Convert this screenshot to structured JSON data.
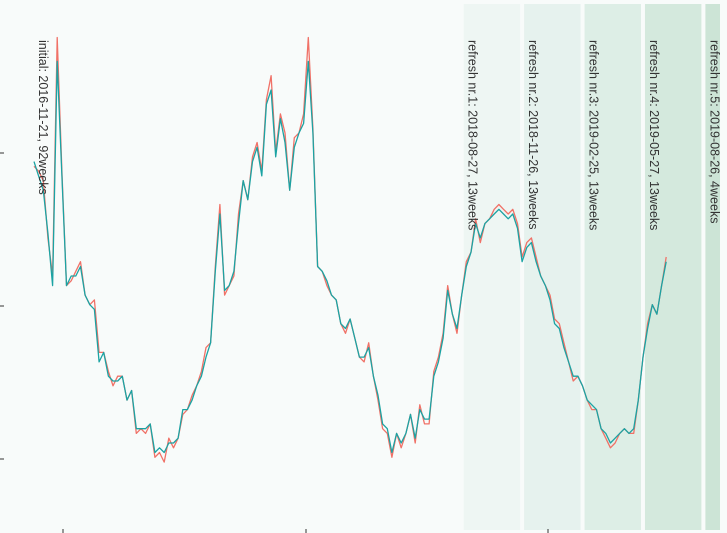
{
  "chart_data": {
    "type": "line",
    "title": "",
    "xlabel": "",
    "ylabel": "",
    "colors": {
      "series_a": "#F07167",
      "series_b": "#1BA3A3",
      "panel_background": "#F8FBFA",
      "band_fills": [
        "#EEF6F3",
        "#E6F2EE",
        "#DDEEE6",
        "#D4E9DD",
        "#CCE4D6"
      ]
    },
    "segments": [
      {
        "label": "initial: 2016-11-21, 92weeks"
      },
      {
        "label": "refresh nr.1: 2018-08-27, 13weeks"
      },
      {
        "label": "refresh nr.2: 2018-11-26, 13weeks"
      },
      {
        "label": "refresh nr.3: 2019-02-25, 13weeks"
      },
      {
        "label": "refresh nr.4: 2019-05-27, 13weeks"
      },
      {
        "label": "refresh nr.5: 2019-08-26, 4weeks"
      }
    ],
    "week_boundaries": [
      0,
      92,
      105,
      118,
      131,
      144,
      148
    ],
    "ylim": [
      0,
      1
    ],
    "series": [
      {
        "values": [
          0.71,
          0.7,
          0.68,
          0.56,
          0.48,
          0.98,
          0.7,
          0.46,
          0.47,
          0.49,
          0.51,
          0.44,
          0.42,
          0.43,
          0.32,
          0.32,
          0.28,
          0.25,
          0.27,
          0.27,
          0.22,
          0.24,
          0.15,
          0.16,
          0.15,
          0.17,
          0.1,
          0.11,
          0.09,
          0.14,
          0.12,
          0.14,
          0.19,
          0.2,
          0.23,
          0.25,
          0.28,
          0.33,
          0.34,
          0.5,
          0.63,
          0.44,
          0.46,
          0.48,
          0.61,
          0.68,
          0.64,
          0.73,
          0.76,
          0.7,
          0.85,
          0.9,
          0.74,
          0.82,
          0.78,
          0.66,
          0.77,
          0.78,
          0.82,
          0.98,
          0.79,
          0.5,
          0.49,
          0.46,
          0.44,
          0.43,
          0.38,
          0.36,
          0.39,
          0.35,
          0.31,
          0.3,
          0.34,
          0.27,
          0.22,
          0.16,
          0.15,
          0.1,
          0.15,
          0.12,
          0.15,
          0.19,
          0.13,
          0.21,
          0.17,
          0.17,
          0.28,
          0.31,
          0.36,
          0.46,
          0.4,
          0.36,
          0.44,
          0.51,
          0.53,
          0.6,
          0.55,
          0.59,
          0.6,
          0.62,
          0.63,
          0.62,
          0.61,
          0.62,
          0.59,
          0.52,
          0.55,
          0.56,
          0.52,
          0.48,
          0.46,
          0.44,
          0.39,
          0.38,
          0.34,
          0.3,
          0.26,
          0.27,
          0.25,
          0.22,
          0.2,
          0.2,
          0.16,
          0.14,
          0.12,
          0.13,
          0.15,
          0.16,
          0.15,
          0.15,
          0.22,
          0.31,
          0.38,
          0.42,
          0.4,
          0.46,
          0.52
        ]
      },
      {
        "values": [
          0.72,
          0.69,
          0.66,
          0.57,
          0.46,
          0.93,
          0.69,
          0.46,
          0.48,
          0.48,
          0.5,
          0.44,
          0.42,
          0.41,
          0.3,
          0.32,
          0.27,
          0.26,
          0.26,
          0.27,
          0.22,
          0.24,
          0.16,
          0.16,
          0.16,
          0.17,
          0.11,
          0.12,
          0.11,
          0.13,
          0.13,
          0.14,
          0.2,
          0.2,
          0.22,
          0.25,
          0.27,
          0.31,
          0.34,
          0.49,
          0.61,
          0.45,
          0.46,
          0.49,
          0.59,
          0.68,
          0.64,
          0.72,
          0.75,
          0.69,
          0.84,
          0.87,
          0.73,
          0.81,
          0.76,
          0.66,
          0.75,
          0.78,
          0.8,
          0.93,
          0.78,
          0.5,
          0.49,
          0.47,
          0.44,
          0.43,
          0.38,
          0.37,
          0.39,
          0.35,
          0.31,
          0.31,
          0.33,
          0.27,
          0.23,
          0.17,
          0.16,
          0.11,
          0.15,
          0.13,
          0.15,
          0.19,
          0.14,
          0.2,
          0.18,
          0.18,
          0.27,
          0.3,
          0.35,
          0.45,
          0.4,
          0.37,
          0.44,
          0.5,
          0.53,
          0.59,
          0.56,
          0.59,
          0.6,
          0.61,
          0.62,
          0.61,
          0.6,
          0.61,
          0.58,
          0.51,
          0.54,
          0.55,
          0.51,
          0.48,
          0.46,
          0.43,
          0.38,
          0.37,
          0.33,
          0.3,
          0.27,
          0.27,
          0.25,
          0.22,
          0.21,
          0.2,
          0.16,
          0.15,
          0.13,
          0.14,
          0.15,
          0.16,
          0.15,
          0.16,
          0.22,
          0.31,
          0.37,
          0.42,
          0.4,
          0.46,
          0.51
        ]
      }
    ]
  }
}
